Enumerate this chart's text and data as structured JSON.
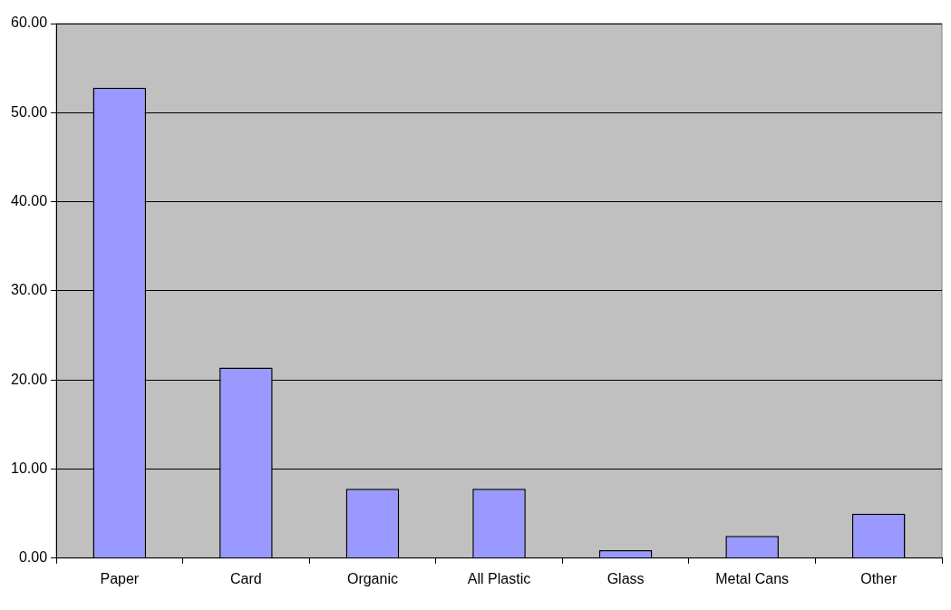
{
  "chart_data": {
    "type": "bar",
    "categories": [
      "Paper",
      "Card",
      "Organic",
      "All Plastic",
      "Glass",
      "Metal Cans",
      "Other"
    ],
    "values": [
      52.8,
      21.4,
      7.8,
      7.8,
      0.9,
      2.5,
      5.0
    ],
    "color": "#9999ff",
    "ylim": [
      0,
      60
    ],
    "yticks": [
      {
        "value": 0,
        "label": "0.00"
      },
      {
        "value": 10,
        "label": "10.00"
      },
      {
        "value": 20,
        "label": "20.00"
      },
      {
        "value": 30,
        "label": "30.00"
      },
      {
        "value": 40,
        "label": "40.00"
      },
      {
        "value": 50,
        "label": "50.00"
      },
      {
        "value": 60,
        "label": "60.00"
      }
    ],
    "grid": "y",
    "legend": false
  }
}
